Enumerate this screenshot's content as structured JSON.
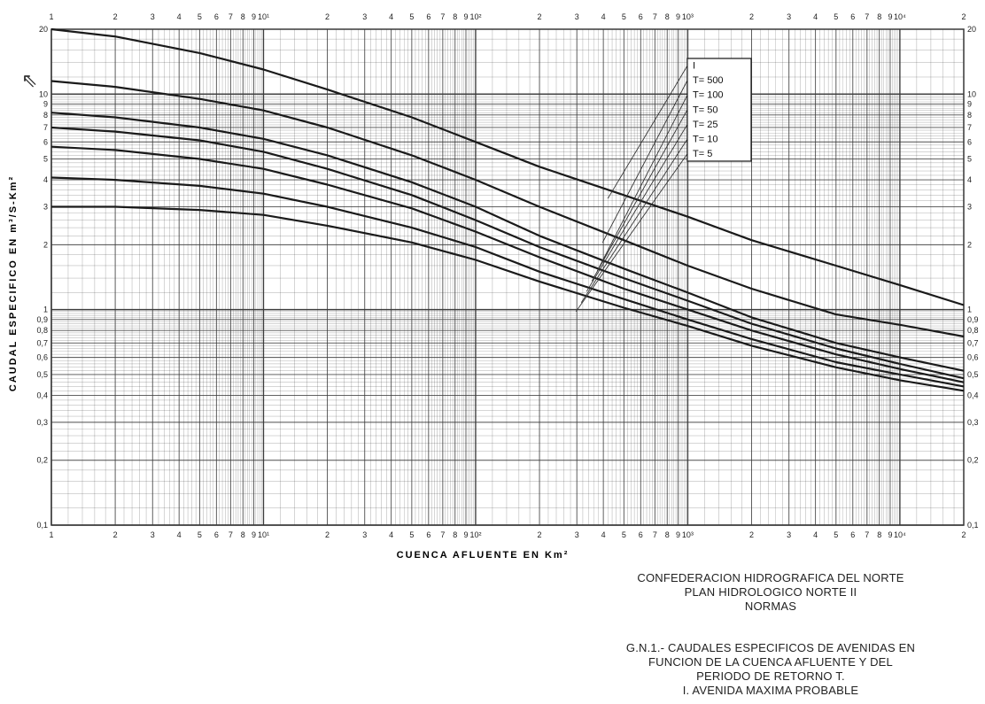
{
  "chart_data": {
    "type": "line",
    "x_scale": "log",
    "y_scale": "log",
    "xlim": [
      1,
      20000
    ],
    "ylim": [
      0.1,
      20
    ],
    "xlabel": "CUENCA AFLUENTE EN Km²",
    "ylabel": "CAUDAL ESPECIFICO EN m³/S-Km²",
    "x_ticks_bottom": [
      "1",
      "2",
      "3",
      "4",
      "5",
      "6",
      "7",
      "8",
      "9",
      "10¹",
      "2",
      "3",
      "4",
      "5",
      "6",
      "7",
      "8",
      "9",
      "10²",
      "2",
      "3",
      "4",
      "5",
      "6",
      "7",
      "8",
      "9",
      "10³",
      "2",
      "3",
      "4",
      "5",
      "6",
      "7",
      "8",
      "9",
      "10⁴",
      "2"
    ],
    "y_ticks_left": [
      "20",
      "10",
      "9",
      "8",
      "7",
      "6",
      "5",
      "4",
      "3",
      "2",
      "1",
      "0,9",
      "0,8",
      "0,7",
      "0,6",
      "0,5",
      "0,4",
      "0,3",
      "0,2",
      "0,1"
    ],
    "y_ticks_right": [
      "20",
      "10",
      "9",
      "8",
      "7",
      "6",
      "5",
      "4",
      "3",
      "2",
      "1",
      "0,9",
      "0,8",
      "0,7",
      "0,6",
      "0,5",
      "0,4",
      "0,3",
      "0,2",
      "0,1"
    ],
    "legend": [
      "I",
      "T= 500",
      "T= 100",
      "T=  50",
      "T=  25",
      "T=  10",
      "T=   5"
    ],
    "legend_position": "upper right of center",
    "grid": true,
    "x": [
      1,
      2,
      5,
      10,
      20,
      50,
      100,
      200,
      500,
      1000,
      2000,
      5000,
      10000,
      20000
    ],
    "series": [
      {
        "name": "I",
        "values": [
          20,
          18.5,
          15.5,
          13,
          10.5,
          7.8,
          6.0,
          4.6,
          3.4,
          2.7,
          2.1,
          1.6,
          1.3,
          1.05
        ]
      },
      {
        "name": "T= 500",
        "values": [
          11.5,
          10.8,
          9.5,
          8.4,
          7.0,
          5.2,
          4.0,
          3.0,
          2.1,
          1.6,
          1.25,
          0.95,
          0.85,
          0.75
        ]
      },
      {
        "name": "T= 100",
        "values": [
          8.2,
          7.8,
          7.0,
          6.2,
          5.2,
          3.9,
          3.0,
          2.2,
          1.55,
          1.2,
          0.92,
          0.7,
          0.6,
          0.52
        ]
      },
      {
        "name": "T=  50",
        "values": [
          7.0,
          6.7,
          6.1,
          5.4,
          4.5,
          3.4,
          2.6,
          1.95,
          1.4,
          1.1,
          0.86,
          0.66,
          0.56,
          0.48
        ]
      },
      {
        "name": "T=  25",
        "values": [
          5.7,
          5.5,
          5.0,
          4.5,
          3.8,
          2.95,
          2.3,
          1.75,
          1.25,
          1.0,
          0.8,
          0.62,
          0.53,
          0.46
        ]
      },
      {
        "name": "T=  10",
        "values": [
          4.1,
          4.0,
          3.75,
          3.45,
          3.0,
          2.4,
          1.95,
          1.5,
          1.12,
          0.9,
          0.73,
          0.57,
          0.5,
          0.44
        ]
      },
      {
        "name": "T=   5",
        "values": [
          3.0,
          3.0,
          2.9,
          2.75,
          2.45,
          2.05,
          1.7,
          1.35,
          1.02,
          0.84,
          0.68,
          0.54,
          0.47,
          0.42
        ]
      }
    ]
  },
  "caption": {
    "org_line1": "CONFEDERACION HIDROGRAFICA DEL NORTE",
    "org_line2": "PLAN HIDROLOGICO NORTE II",
    "org_line3": "NORMAS",
    "fig_line1": "G.N.1.- CAUDALES ESPECIFICOS DE AVENIDAS EN",
    "fig_line2": "FUNCION DE LA CUENCA AFLUENTE Y DEL",
    "fig_line3": "PERIODO DE RETORNO T.",
    "fig_line4": "I. AVENIDA MAXIMA PROBABLE"
  },
  "colors": {
    "grid": "#3a3a3a",
    "curve": "#1a1a1a",
    "background": "#ffffff"
  }
}
